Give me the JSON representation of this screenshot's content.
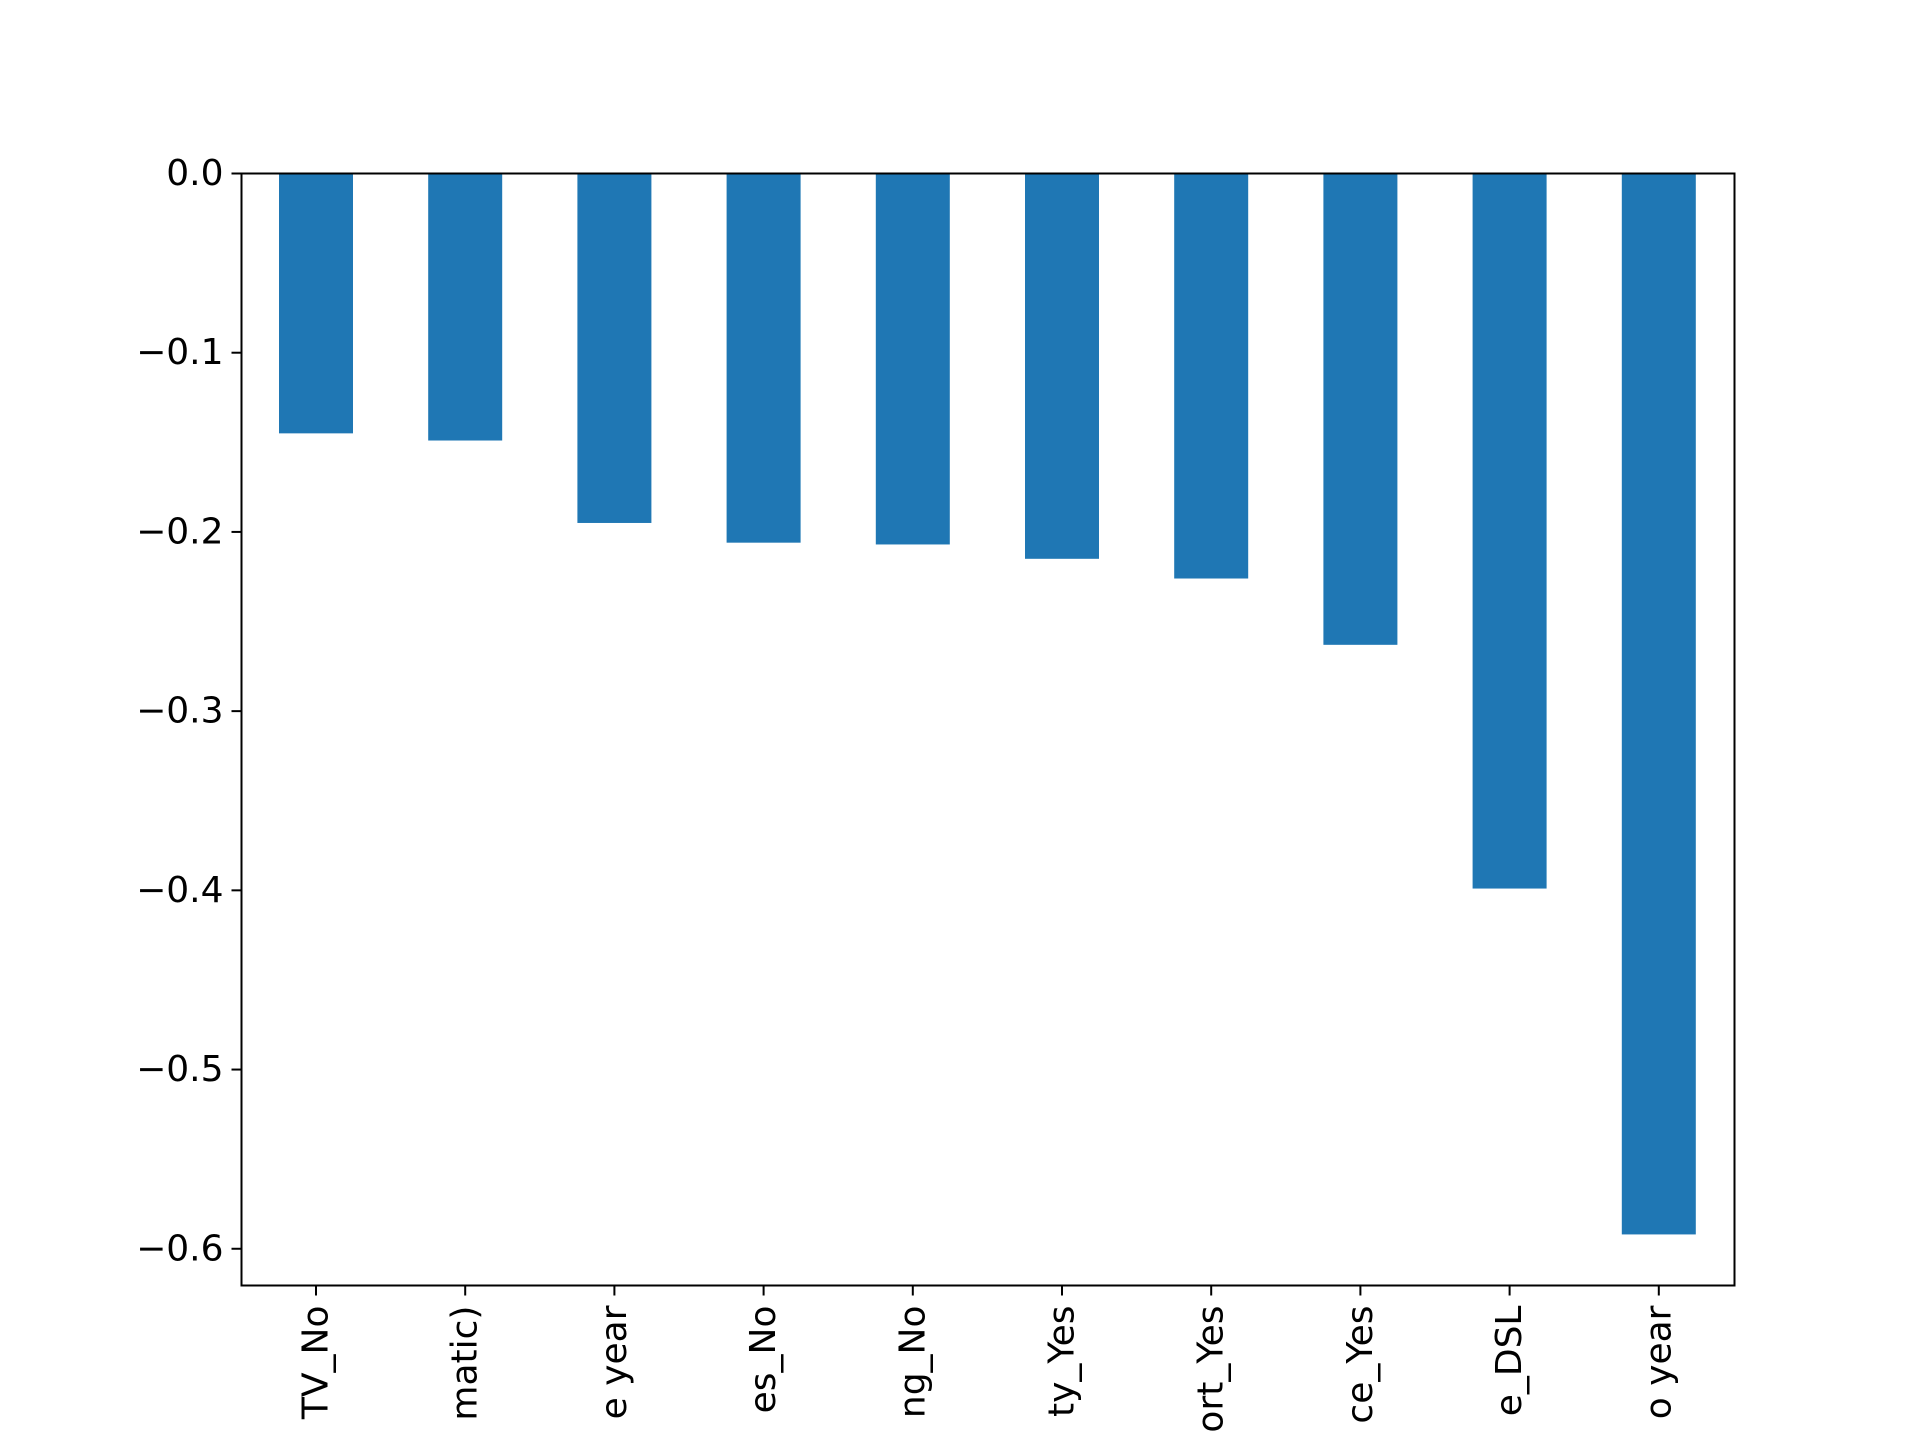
{
  "chart_data": {
    "type": "bar",
    "title": "",
    "xlabel": "",
    "ylabel": "",
    "categories": [
      "TV_No",
      "matic)",
      "e year",
      "es_No",
      "ng_No",
      "ty_Yes",
      "ort_Yes",
      "ce_Yes",
      "e_DSL",
      "o year"
    ],
    "values": [
      -0.145,
      -0.149,
      -0.195,
      -0.206,
      -0.207,
      -0.215,
      -0.226,
      -0.263,
      -0.399,
      -0.592
    ],
    "ylim": [
      -0.6205,
      0.0
    ],
    "yticks": [
      0.0,
      -0.1,
      -0.2,
      -0.3,
      -0.4,
      -0.5,
      -0.6
    ],
    "ytick_labels": [
      "0.0",
      "−0.1",
      "−0.2",
      "−0.3",
      "−0.4",
      "−0.5",
      "−0.6"
    ],
    "bar_color": "#1f77b4",
    "grid": false,
    "legend": "none"
  }
}
